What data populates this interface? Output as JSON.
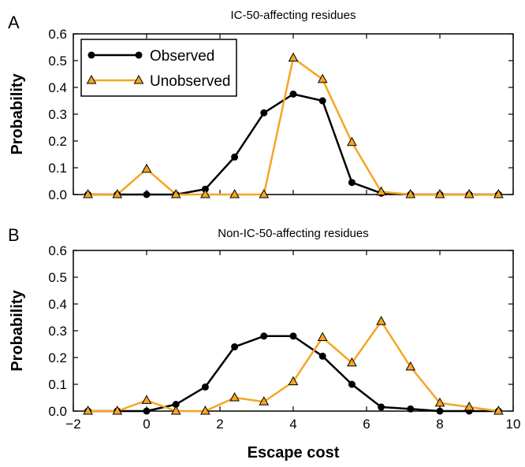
{
  "colors": {
    "observed": "#000000",
    "unobserved": "#f5a623",
    "marker_fill_unobserved": "#f5a623"
  },
  "chart_data": [
    {
      "type": "line",
      "panel_letter": "A",
      "title": "IC-50-affecting residues",
      "ylabel": "Probability",
      "xlabel": "",
      "xlim": [
        -2,
        10
      ],
      "ylim": [
        0,
        0.6
      ],
      "yticks": [
        "0.0",
        "0.1",
        "0.2",
        "0.3",
        "0.4",
        "0.5",
        "0.6"
      ],
      "xticks": [],
      "legend": {
        "placement": "top-left",
        "entries": [
          "Observed",
          "Unobserved"
        ]
      },
      "series": [
        {
          "name": "Observed",
          "marker": "circle",
          "color": "#000000",
          "x": [
            -1.6,
            -0.8,
            0,
            0.8,
            1.6,
            2.4,
            3.2,
            4.0,
            4.8,
            5.6,
            6.4,
            7.2,
            8.0,
            8.8,
            9.6
          ],
          "y": [
            0,
            0,
            0,
            0,
            0.02,
            0.14,
            0.305,
            0.375,
            0.35,
            0.045,
            0.005,
            0,
            0,
            0,
            0
          ]
        },
        {
          "name": "Unobserved",
          "marker": "triangle",
          "color": "#f5a623",
          "x": [
            -1.6,
            -0.8,
            0,
            0.8,
            1.6,
            2.4,
            3.2,
            4.0,
            4.8,
            5.6,
            6.4,
            7.2,
            8.0,
            8.8,
            9.6
          ],
          "y": [
            0,
            0,
            0.095,
            0,
            0,
            0,
            0,
            0.51,
            0.43,
            0.195,
            0.01,
            0,
            0,
            0,
            0
          ]
        }
      ]
    },
    {
      "type": "line",
      "panel_letter": "B",
      "title": "Non-IC-50-affecting residues",
      "ylabel": "Probability",
      "xlabel": "Escape cost",
      "xlim": [
        -2,
        10
      ],
      "ylim": [
        0,
        0.6
      ],
      "yticks": [
        "0.0",
        "0.1",
        "0.2",
        "0.3",
        "0.4",
        "0.5",
        "0.6"
      ],
      "xticks": [
        "−2",
        "0",
        "2",
        "4",
        "6",
        "8",
        "10"
      ],
      "series": [
        {
          "name": "Observed",
          "marker": "circle",
          "color": "#000000",
          "x": [
            -1.6,
            -0.8,
            0,
            0.8,
            1.6,
            2.4,
            3.2,
            4.0,
            4.8,
            5.6,
            6.4,
            7.2,
            8.0,
            8.8,
            9.6
          ],
          "y": [
            0,
            0,
            0,
            0.025,
            0.09,
            0.24,
            0.28,
            0.28,
            0.205,
            0.1,
            0.015,
            0.008,
            0,
            0,
            0
          ]
        },
        {
          "name": "Unobserved",
          "marker": "triangle",
          "color": "#f5a623",
          "x": [
            -1.6,
            -0.8,
            0,
            0.8,
            1.6,
            2.4,
            3.2,
            4.0,
            4.8,
            5.6,
            6.4,
            7.2,
            8.0,
            8.8,
            9.6
          ],
          "y": [
            0,
            0,
            0.04,
            0,
            0,
            0.05,
            0.035,
            0.11,
            0.275,
            0.18,
            0.335,
            0.165,
            0.03,
            0.015,
            0
          ]
        }
      ]
    }
  ]
}
